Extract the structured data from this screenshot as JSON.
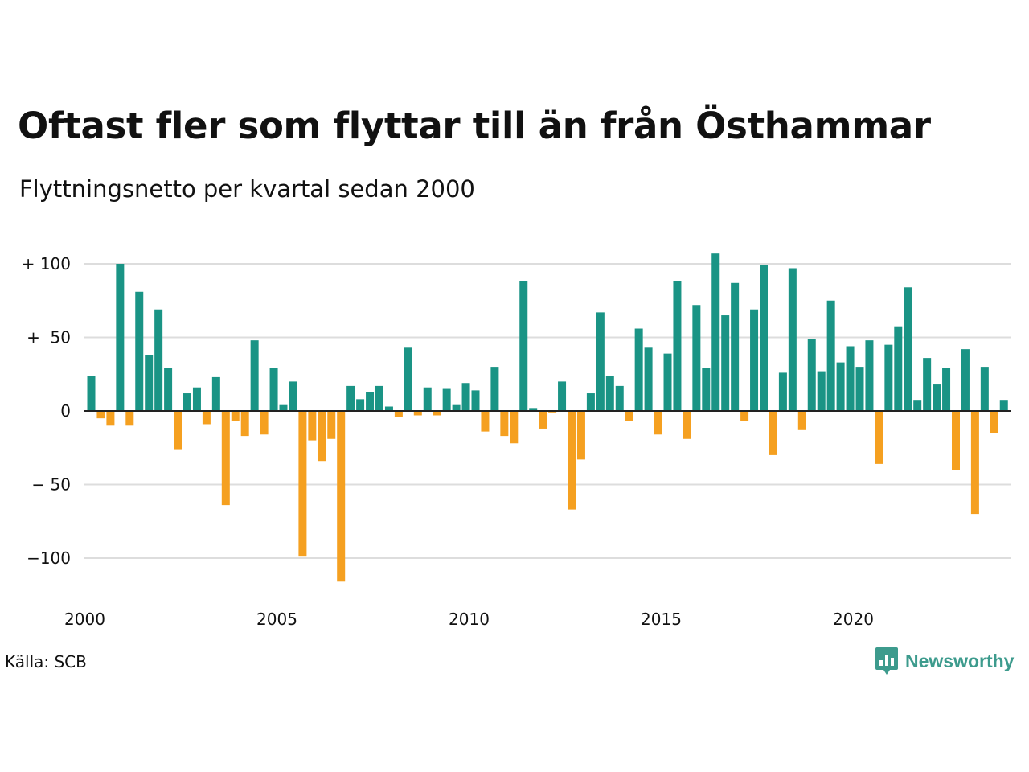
{
  "title": "Oftast fler som flyttar till än från Östhammar",
  "subtitle": "Flyttningsnetto per kvartal sedan 2000",
  "source": "Källa: SCB",
  "logo": {
    "text": "Newsworthy",
    "icon": "newsworthy-bar-chart-logo-icon",
    "color": "#3d9b8d"
  },
  "colors": {
    "positive": "#1a9485",
    "negative": "#f5a020",
    "grid": "#dddddd",
    "axis": "#222222"
  },
  "chart_data": {
    "type": "bar",
    "title": "Oftast fler som flyttar till än från Östhammar",
    "subtitle": "Flyttningsnetto per kvartal sedan 2000",
    "xlabel": "",
    "ylabel": "",
    "ylim": [
      -120,
      110
    ],
    "yticks": [
      {
        "value": 100,
        "label": "+ 100"
      },
      {
        "value": 50,
        "label": "+  50"
      },
      {
        "value": 0,
        "label": "0"
      },
      {
        "value": -50,
        "label": "− 50"
      },
      {
        "value": -100,
        "label": "−100"
      }
    ],
    "xticks": [
      "2000",
      "2005",
      "2010",
      "2015",
      "2020"
    ],
    "grid": true,
    "legend": "none",
    "start_year": 2000,
    "categories": [
      "2000 K1",
      "2000 K2",
      "2000 K3",
      "2000 K4",
      "2001 K1",
      "2001 K2",
      "2001 K3",
      "2001 K4",
      "2002 K1",
      "2002 K2",
      "2002 K3",
      "2002 K4",
      "2003 K1",
      "2003 K2",
      "2003 K3",
      "2003 K4",
      "2004 K1",
      "2004 K2",
      "2004 K3",
      "2004 K4",
      "2005 K1",
      "2005 K2",
      "2005 K3",
      "2005 K4",
      "2006 K1",
      "2006 K2",
      "2006 K3",
      "2006 K4",
      "2007 K1",
      "2007 K2",
      "2007 K3",
      "2007 K4",
      "2008 K1",
      "2008 K2",
      "2008 K3",
      "2008 K4",
      "2009 K1",
      "2009 K2",
      "2009 K3",
      "2009 K4",
      "2010 K1",
      "2010 K2",
      "2010 K3",
      "2010 K4",
      "2011 K1",
      "2011 K2",
      "2011 K3",
      "2011 K4",
      "2012 K1",
      "2012 K2",
      "2012 K3",
      "2012 K4",
      "2013 K1",
      "2013 K2",
      "2013 K3",
      "2013 K4",
      "2014 K1",
      "2014 K2",
      "2014 K3",
      "2014 K4",
      "2015 K1",
      "2015 K2",
      "2015 K3",
      "2015 K4",
      "2016 K1",
      "2016 K2",
      "2016 K3",
      "2016 K4",
      "2017 K1",
      "2017 K2",
      "2017 K3",
      "2017 K4",
      "2018 K1",
      "2018 K2",
      "2018 K3",
      "2018 K4",
      "2019 K1",
      "2019 K2",
      "2019 K3",
      "2019 K4",
      "2020 K1",
      "2020 K2",
      "2020 K3",
      "2020 K4",
      "2021 K1",
      "2021 K2",
      "2021 K3",
      "2021 K4",
      "2022 K1",
      "2022 K2",
      "2022 K3",
      "2022 K4",
      "2023 K1",
      "2023 K2",
      "2023 K3",
      "2023 K4",
      "2024 K1"
    ],
    "values": [
      24,
      -5,
      -10,
      100,
      -10,
      81,
      38,
      69,
      29,
      -26,
      12,
      16,
      -9,
      23,
      -64,
      -7,
      -17,
      48,
      -16,
      29,
      4,
      20,
      -99,
      -20,
      -34,
      -19,
      -116,
      17,
      8,
      13,
      17,
      3,
      -4,
      43,
      -3,
      16,
      -3,
      15,
      4,
      19,
      14,
      -14,
      30,
      -17,
      -22,
      88,
      2,
      -12,
      -1,
      20,
      -67,
      -33,
      12,
      67,
      24,
      17,
      -7,
      56,
      43,
      -16,
      39,
      88,
      -19,
      72,
      29,
      107,
      65,
      87,
      -7,
      69,
      99,
      -30,
      26,
      97,
      -13,
      49,
      27,
      75,
      33,
      44,
      30,
      48,
      -36,
      45,
      57,
      84,
      7,
      36,
      18,
      29,
      -40,
      42,
      -70,
      30,
      -15,
      7,
      0
    ]
  }
}
